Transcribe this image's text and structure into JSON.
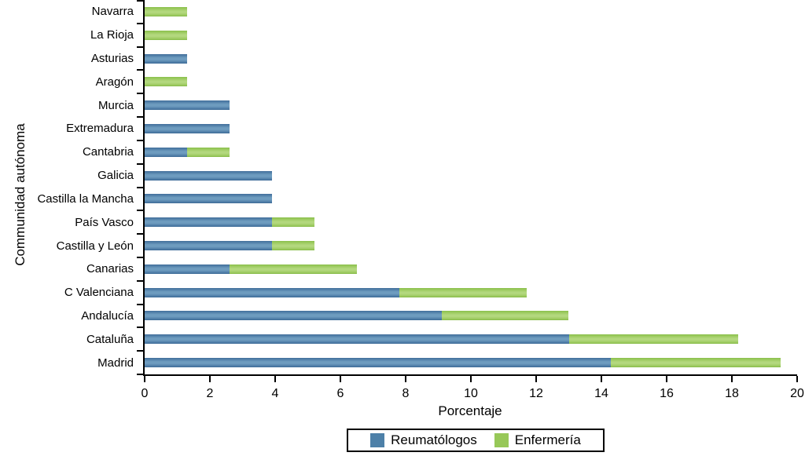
{
  "colors": {
    "reumatologos_blue": "#4d80a8",
    "enfermeria_green": "#97c858",
    "axis": "#000000",
    "background": "#ffffff"
  },
  "chart_data": {
    "type": "bar",
    "orientation": "horizontal",
    "stacked": true,
    "title": "",
    "xlabel": "Porcentaje",
    "ylabel": "Communidad autónoma",
    "xlim": [
      0,
      20
    ],
    "xticks": [
      0,
      2,
      4,
      6,
      8,
      10,
      12,
      14,
      16,
      18,
      20
    ],
    "grid": false,
    "categories_top_to_bottom": [
      "Navarra",
      "La Rioja",
      "Asturias",
      "Aragón",
      "Murcia",
      "Extremadura",
      "Cantabria",
      "Galicia",
      "Castilla la Mancha",
      "País Vasco",
      "Castilla y León",
      "Canarias",
      "C Valenciana",
      "Andalucía",
      "Cataluña",
      "Madrid"
    ],
    "series": [
      {
        "name": "Reumatólogos",
        "color": "#4d80a8",
        "values": [
          0,
          0,
          1.3,
          0,
          2.6,
          2.6,
          1.3,
          3.9,
          3.9,
          3.9,
          3.9,
          2.6,
          7.8,
          9.1,
          13.0,
          14.3
        ]
      },
      {
        "name": "Enfermería",
        "color": "#97c858",
        "values": [
          1.3,
          1.3,
          0,
          1.3,
          0,
          0,
          1.3,
          0,
          0,
          1.3,
          1.3,
          3.9,
          3.9,
          3.9,
          5.2,
          5.2
        ]
      }
    ],
    "legend": {
      "position": "bottom-center",
      "border": true,
      "entries": [
        "Reumatólogos",
        "Enfermería"
      ]
    }
  }
}
